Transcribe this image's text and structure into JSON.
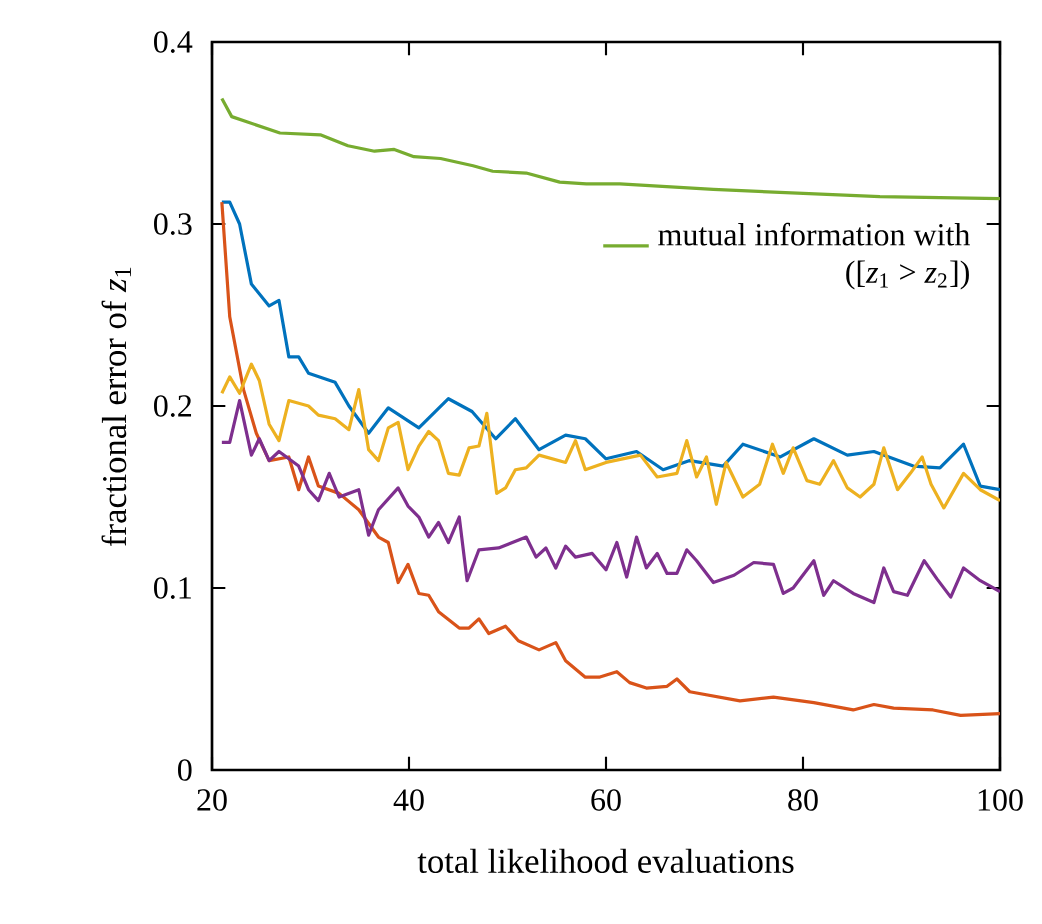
{
  "chart_data": {
    "type": "line",
    "xlabel": "total likelihood evaluations",
    "ylabel": "fractional error of *z*$_{1}$",
    "xlim": [
      20,
      100
    ],
    "ylim": [
      0,
      0.4
    ],
    "xticks": [
      20,
      40,
      60,
      80,
      100
    ],
    "yticks": [
      0,
      0.1,
      0.2,
      0.3,
      0.4
    ],
    "legend": "right",
    "series": [
      {
        "color": "#0072bd",
        "x": [
          21,
          21.8,
          22.8,
          24,
          25.8,
          26.8,
          27.8,
          28.8,
          29.8,
          32.5,
          33.9,
          35.9,
          37.9,
          41,
          44,
          46.4,
          48.8,
          50.8,
          53.2,
          55.9,
          57.9,
          60,
          63.1,
          65.8,
          68.5,
          71.9,
          73.9,
          77.7,
          81.1,
          84.5,
          87.2,
          91.2,
          93.9,
          96.3,
          98,
          100
        ],
        "values": [
          0.312,
          0.312,
          0.3,
          0.267,
          0.255,
          0.258,
          0.227,
          0.227,
          0.218,
          0.213,
          0.2,
          0.185,
          0.199,
          0.188,
          0.204,
          0.197,
          0.182,
          0.193,
          0.176,
          0.184,
          0.182,
          0.171,
          0.175,
          0.165,
          0.17,
          0.167,
          0.179,
          0.172,
          0.182,
          0.173,
          0.175,
          0.167,
          0.166,
          0.179,
          0.156,
          0.154
        ]
      },
      {
        "color": "#d95319",
        "x": [
          21,
          21.8,
          23.2,
          24.5,
          25.8,
          27.8,
          28.8,
          29.8,
          30.8,
          32.9,
          34.9,
          36.9,
          37.9,
          38.9,
          39.9,
          41,
          42,
          43,
          45.1,
          46.1,
          47.1,
          48.1,
          49.8,
          51.1,
          53.2,
          54.9,
          55.9,
          57.9,
          59.3,
          61.1,
          62.4,
          64.1,
          66.2,
          67.2,
          68.5,
          73.6,
          77,
          81.1,
          85.1,
          87.2,
          89.2,
          93.2,
          96,
          100
        ],
        "values": [
          0.312,
          0.249,
          0.209,
          0.185,
          0.17,
          0.172,
          0.154,
          0.172,
          0.156,
          0.152,
          0.143,
          0.128,
          0.125,
          0.103,
          0.113,
          0.097,
          0.096,
          0.087,
          0.078,
          0.078,
          0.083,
          0.075,
          0.079,
          0.071,
          0.066,
          0.07,
          0.06,
          0.051,
          0.051,
          0.054,
          0.048,
          0.045,
          0.046,
          0.05,
          0.043,
          0.038,
          0.04,
          0.037,
          0.033,
          0.036,
          0.034,
          0.033,
          0.03,
          0.031
        ]
      },
      {
        "color": "#edb120",
        "x": [
          21,
          21.8,
          22.8,
          24,
          24.8,
          25.8,
          26.8,
          27.8,
          29.8,
          30.8,
          32.5,
          33.9,
          34.9,
          35.9,
          36.9,
          37.9,
          38.9,
          39.9,
          41,
          42,
          43,
          44,
          45.1,
          46.1,
          47.1,
          47.9,
          48.9,
          49.8,
          50.8,
          51.9,
          53.2,
          55.9,
          56.9,
          57.9,
          60,
          63.5,
          65.2,
          67.2,
          68.2,
          69.2,
          70.2,
          71.2,
          72.2,
          73.9,
          75.6,
          76.9,
          78,
          79,
          80.4,
          81.7,
          83.1,
          84.5,
          85.8,
          87.2,
          88.2,
          89.6,
          90.9,
          92.1,
          93,
          94.3,
          96.3,
          98,
          100
        ],
        "values": [
          0.207,
          0.216,
          0.207,
          0.223,
          0.214,
          0.19,
          0.181,
          0.203,
          0.2,
          0.195,
          0.193,
          0.187,
          0.209,
          0.176,
          0.17,
          0.188,
          0.191,
          0.165,
          0.178,
          0.186,
          0.181,
          0.163,
          0.162,
          0.177,
          0.178,
          0.196,
          0.152,
          0.155,
          0.165,
          0.166,
          0.173,
          0.169,
          0.181,
          0.165,
          0.169,
          0.173,
          0.161,
          0.163,
          0.181,
          0.161,
          0.172,
          0.146,
          0.169,
          0.15,
          0.157,
          0.179,
          0.163,
          0.177,
          0.159,
          0.157,
          0.17,
          0.155,
          0.15,
          0.157,
          0.177,
          0.154,
          0.163,
          0.172,
          0.157,
          0.144,
          0.163,
          0.154,
          0.148
        ]
      },
      {
        "color": "#7e2f8e",
        "x": [
          21,
          21.8,
          22.8,
          24,
          24.8,
          25.8,
          26.8,
          28.8,
          29.8,
          30.8,
          31.9,
          32.9,
          34.9,
          35.9,
          36.9,
          38.9,
          39.9,
          41,
          42,
          43,
          44,
          45.1,
          45.9,
          47.1,
          49.1,
          51.9,
          52.9,
          53.9,
          54.9,
          55.9,
          56.9,
          58.6,
          60,
          61.1,
          62.1,
          63.1,
          64.1,
          65.2,
          66.2,
          67.2,
          68.2,
          69.2,
          70.9,
          73,
          75,
          77,
          78,
          79,
          81.1,
          82.1,
          83.1,
          85.1,
          87.2,
          88.2,
          89.2,
          90.6,
          92.3,
          93.6,
          95,
          96.3,
          98,
          100
        ],
        "values": [
          0.18,
          0.18,
          0.203,
          0.173,
          0.182,
          0.17,
          0.175,
          0.167,
          0.154,
          0.148,
          0.163,
          0.15,
          0.154,
          0.129,
          0.143,
          0.155,
          0.145,
          0.139,
          0.128,
          0.136,
          0.125,
          0.139,
          0.104,
          0.121,
          0.122,
          0.128,
          0.117,
          0.122,
          0.111,
          0.123,
          0.117,
          0.119,
          0.11,
          0.125,
          0.106,
          0.128,
          0.111,
          0.119,
          0.108,
          0.108,
          0.121,
          0.115,
          0.103,
          0.107,
          0.114,
          0.113,
          0.097,
          0.1,
          0.115,
          0.096,
          0.104,
          0.097,
          0.092,
          0.111,
          0.098,
          0.096,
          0.115,
          0.105,
          0.095,
          0.111,
          0.104,
          0.098
        ]
      },
      {
        "name": "mutual information with ([*z*$_{1}$ > *z*$_{2}$])",
        "color": "#77ac30",
        "x": [
          21,
          22,
          26.9,
          31,
          33.8,
          36.5,
          38.5,
          40.5,
          43.2,
          46.5,
          48.5,
          51.9,
          55.3,
          58,
          61.4,
          70.9,
          87.8,
          100
        ],
        "values": [
          0.369,
          0.359,
          0.35,
          0.349,
          0.343,
          0.34,
          0.341,
          0.337,
          0.336,
          0.332,
          0.329,
          0.328,
          0.323,
          0.322,
          0.322,
          0.319,
          0.315,
          0.314
        ]
      }
    ]
  }
}
